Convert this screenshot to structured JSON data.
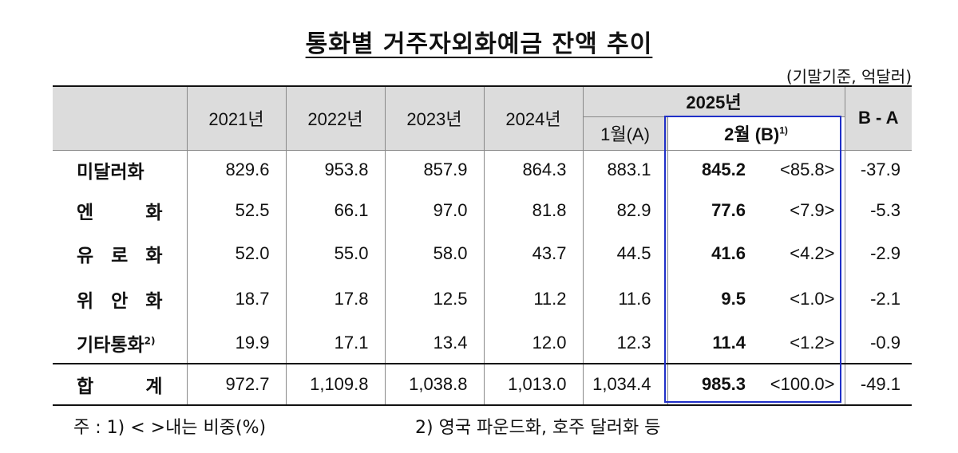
{
  "title": "통화별 거주자외화예금 잔액 추이",
  "unit": "(기말기준, 억달러)",
  "header": {
    "years": [
      "2021년",
      "2022년",
      "2023년",
      "2024년"
    ],
    "y2025": "2025년",
    "jan": "1월(A)",
    "feb": "2월",
    "feb_b": "(B)",
    "feb_note": "1)",
    "diff": "B - A"
  },
  "rows": [
    {
      "label": "미달러화",
      "label_chars": [],
      "note": "",
      "values": [
        "829.6",
        "953.8",
        "857.9",
        "864.3",
        "883.1"
      ],
      "feb": "845.2",
      "share": "<85.8>",
      "diff": "-37.9"
    },
    {
      "label": "",
      "label_chars": [
        "엔",
        "화"
      ],
      "note": "",
      "values": [
        "52.5",
        "66.1",
        "97.0",
        "81.8",
        "82.9"
      ],
      "feb": "77.6",
      "share": "<7.9>",
      "diff": "-5.3"
    },
    {
      "label": "",
      "label_chars": [
        "유",
        "로",
        "화"
      ],
      "note": "",
      "values": [
        "52.0",
        "55.0",
        "58.0",
        "43.7",
        "44.5"
      ],
      "feb": "41.6",
      "share": "<4.2>",
      "diff": "-2.9"
    },
    {
      "label": "",
      "label_chars": [
        "위",
        "안",
        "화"
      ],
      "note": "",
      "values": [
        "18.7",
        "17.8",
        "12.5",
        "11.2",
        "11.6"
      ],
      "feb": "9.5",
      "share": "<1.0>",
      "diff": "-2.1"
    },
    {
      "label": "기타통화",
      "label_chars": [],
      "note": "2)",
      "values": [
        "19.9",
        "17.1",
        "13.4",
        "12.0",
        "12.3"
      ],
      "feb": "11.4",
      "share": "<1.2>",
      "diff": "-0.9"
    }
  ],
  "total": {
    "label_chars": [
      "합",
      "계"
    ],
    "values": [
      "972.7",
      "1,109.8",
      "1,038.8",
      "1,013.0",
      "1,034.4"
    ],
    "feb": "985.3",
    "share": "<100.0>",
    "diff": "-49.1"
  },
  "notes": {
    "note1": "주 : 1) <   >내는 비중(%)",
    "note2": "2) 영국 파운드화, 호주 달러화 등"
  }
}
